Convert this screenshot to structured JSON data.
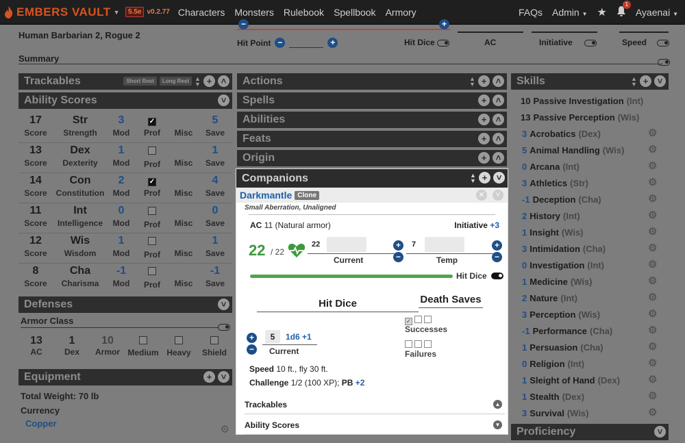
{
  "nav": {
    "logo": "EMBERS VAULT",
    "edition": "5.5e",
    "version": "v0.2.77",
    "links": [
      "Characters",
      "Monsters",
      "Rulebook",
      "Spellbook",
      "Armory"
    ],
    "faqs": "FAQs",
    "admin": "Admin",
    "notif_count": "1",
    "user": "Ayaenai"
  },
  "header": {
    "char_line": "Human Barbarian 2, Rogue 2",
    "hit_point_label": "Hit Point",
    "hit_dice_label": "Hit Dice",
    "ac_label": "AC",
    "initiative_label": "Initiative",
    "speed_label": "Speed",
    "summary": "Summary"
  },
  "left": {
    "trackables": "Trackables",
    "short_rest": "Short Rest",
    "long_rest": "Long Rest",
    "ability_scores": "Ability Scores",
    "abilities": [
      {
        "score": "17",
        "abbr": "Str",
        "name": "Strength",
        "mod": "3",
        "prof": true,
        "save": "5"
      },
      {
        "score": "13",
        "abbr": "Dex",
        "name": "Dexterity",
        "mod": "1",
        "prof": false,
        "save": "1"
      },
      {
        "score": "14",
        "abbr": "Con",
        "name": "Constitution",
        "mod": "2",
        "prof": true,
        "save": "4"
      },
      {
        "score": "11",
        "abbr": "Int",
        "name": "Intelligence",
        "mod": "0",
        "prof": false,
        "save": "0"
      },
      {
        "score": "12",
        "abbr": "Wis",
        "name": "Wisdom",
        "mod": "1",
        "prof": false,
        "save": "1"
      },
      {
        "score": "8",
        "abbr": "Cha",
        "name": "Charisma",
        "mod": "-1",
        "prof": false,
        "save": "-1"
      }
    ],
    "labels": {
      "score": "Score",
      "mod": "Mod",
      "prof": "Prof",
      "misc": "Misc",
      "save": "Save"
    },
    "defenses": "Defenses",
    "armor_class": "Armor Class",
    "ac_values": {
      "ac": "13",
      "dex": "1",
      "armor": "10"
    },
    "ac_labels": {
      "ac": "AC",
      "dex": "Dex",
      "armor": "Armor",
      "medium": "Medium",
      "heavy": "Heavy",
      "shield": "Shield"
    },
    "equipment": "Equipment",
    "total_weight": "Total Weight: 70 lb",
    "currency": "Currency",
    "copper": "Copper"
  },
  "middle": {
    "sections": [
      "Actions",
      "Spells",
      "Abilities",
      "Feats",
      "Origin"
    ]
  },
  "companion": {
    "title": "Companions",
    "name": "Darkmantle",
    "clone": "Clone",
    "type": "Small Aberration, Unaligned",
    "ac_label": "AC",
    "ac_value": "11 (Natural armor)",
    "initiative_label": "Initiative",
    "initiative_value": "+3",
    "hp_current": "22",
    "hp_max": "/ 22",
    "hp_small": "22",
    "current_label": "Current",
    "temp_value": "7",
    "temp_label": "Temp",
    "hit_dice_toggle": "Hit Dice",
    "hit_dice_title": "Hit Dice",
    "death_saves_title": "Death Saves",
    "hd_count": "5",
    "hd_die": "1d6 +1",
    "hd_current_label": "Current",
    "successes": "Successes",
    "failures": "Failures",
    "speed_label": "Speed",
    "speed_value": "10 ft., fly 30 ft.",
    "challenge_label": "Challenge",
    "challenge_value": "1/2 (100 XP);",
    "pb_label": "PB",
    "pb_value": "+2",
    "trackables": "Trackables",
    "ability_scores": "Ability Scores"
  },
  "right": {
    "skills": "Skills",
    "passive": [
      {
        "value": "10",
        "label": "Passive Investigation",
        "ability": "(Int)"
      },
      {
        "value": "13",
        "label": "Passive Perception",
        "ability": "(Wis)"
      }
    ],
    "list": [
      {
        "value": "3",
        "label": "Acrobatics",
        "ability": "(Dex)"
      },
      {
        "value": "5",
        "label": "Animal Handling",
        "ability": "(Wis)"
      },
      {
        "value": "0",
        "label": "Arcana",
        "ability": "(Int)"
      },
      {
        "value": "3",
        "label": "Athletics",
        "ability": "(Str)"
      },
      {
        "value": "-1",
        "label": "Deception",
        "ability": "(Cha)"
      },
      {
        "value": "2",
        "label": "History",
        "ability": "(Int)"
      },
      {
        "value": "1",
        "label": "Insight",
        "ability": "(Wis)"
      },
      {
        "value": "3",
        "label": "Intimidation",
        "ability": "(Cha)"
      },
      {
        "value": "0",
        "label": "Investigation",
        "ability": "(Int)"
      },
      {
        "value": "1",
        "label": "Medicine",
        "ability": "(Wis)"
      },
      {
        "value": "2",
        "label": "Nature",
        "ability": "(Int)"
      },
      {
        "value": "3",
        "label": "Perception",
        "ability": "(Wis)"
      },
      {
        "value": "-1",
        "label": "Performance",
        "ability": "(Cha)"
      },
      {
        "value": "1",
        "label": "Persuasion",
        "ability": "(Cha)"
      },
      {
        "value": "0",
        "label": "Religion",
        "ability": "(Int)"
      },
      {
        "value": "1",
        "label": "Sleight of Hand",
        "ability": "(Dex)"
      },
      {
        "value": "1",
        "label": "Stealth",
        "ability": "(Dex)"
      },
      {
        "value": "3",
        "label": "Survival",
        "ability": "(Wis)"
      }
    ],
    "proficiency": "Proficiency"
  }
}
